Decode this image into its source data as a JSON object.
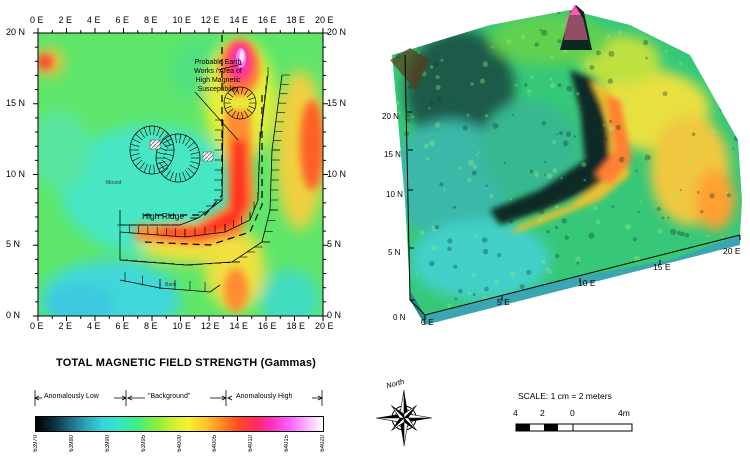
{
  "map": {
    "top_x_labels": [
      "0 E",
      "2 E",
      "4 E",
      "6 E",
      "8 E",
      "10 E",
      "12 E",
      "14 E",
      "16 E",
      "18 E",
      "20 E"
    ],
    "bottom_x_labels": [
      "0 E",
      "2 E",
      "4 E",
      "6 E",
      "8 E",
      "10 E",
      "12 E",
      "14 E",
      "16 E",
      "18 E",
      "20 E"
    ],
    "left_y_labels": [
      "20 N",
      "15 N",
      "10 N",
      "5 N",
      "0 N"
    ],
    "right_y_labels": [
      "20 N",
      "15 N",
      "10 N",
      "5 N",
      "0 N"
    ],
    "annotation": [
      "Probable Earth",
      "Works / Area of",
      "High Magnetic",
      "Susceptibility"
    ],
    "ridge_label": "High Ridge",
    "mound_label": "Mound",
    "bank_label": "Bank"
  },
  "surface3d": {
    "y_labels": [
      "20 N",
      "15 N",
      "10 N",
      "5 N",
      "0 N"
    ],
    "x_labels": [
      "0 E",
      "5 E",
      "10 E",
      "15 E",
      "20 E"
    ]
  },
  "legend": {
    "title": "TOTAL MAGNETIC FIELD STRENGTH (Gammas)",
    "low": "Anomalously Low",
    "background": "\"Background\"",
    "high": "Anomalously High",
    "ticks": [
      "63970",
      "63980",
      "63990",
      "63995",
      "64000",
      "64005",
      "64010",
      "64015",
      "64020"
    ],
    "colors": [
      "#000000",
      "#0a2c3c",
      "#1f6a86",
      "#2aa8b8",
      "#35d6e0",
      "#33e8c0",
      "#3df080",
      "#80f040",
      "#c8f030",
      "#f8f030",
      "#ffc830",
      "#ff8a20",
      "#ff4a20",
      "#ff2a60",
      "#ff30c0",
      "#ff60ff",
      "#ffb0ff",
      "#ffffff"
    ]
  },
  "north": {
    "label": "North"
  },
  "scale": {
    "label": "SCALE: 1 cm = 2 meters",
    "ticks": [
      "4",
      "2",
      "0",
      "4m"
    ]
  }
}
